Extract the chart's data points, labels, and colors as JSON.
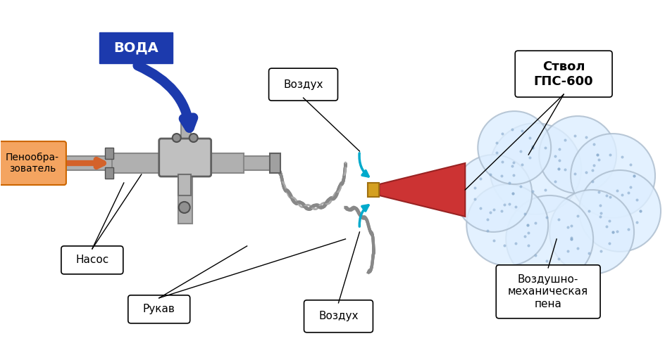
{
  "title": "",
  "background_color": "#ffffff",
  "labels": {
    "voda": "ВОДА",
    "vozduh_top": "Воздух",
    "vozduh_bottom": "Воздух",
    "ствол": "Ствол\nГПС-600",
    "пена": "Воздушно-\nмеханическая\nпена",
    "насос": "Насос",
    "рукав": "Рукав",
    "пенообр": "Пенообра-\nзователь"
  },
  "colors": {
    "voda_box": "#1c3aad",
    "voda_text": "#ffffff",
    "arrow_blue": "#1c3aad",
    "arrow_orange": "#d2691e",
    "pipe_gray": "#a0a0a0",
    "pipe_dark": "#808080",
    "foam_cone": "#cc3333",
    "foam_cloud": "#ddeeff",
    "foam_cloud_border": "#aabbcc",
    "callout_bg": "#ffffff",
    "callout_border": "#000000",
    "penообр_bg": "#f4a460",
    "penообр_border": "#cc6600",
    "cyan_arrows": "#00ced1"
  }
}
